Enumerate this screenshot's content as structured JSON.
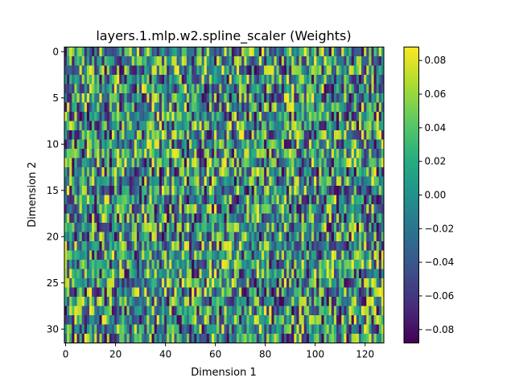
{
  "chart_data": {
    "type": "heatmap",
    "title": "layers.1.mlp.w2.spline_scaler (Weights)",
    "xlabel": "Dimension 1",
    "ylabel": "Dimension 2",
    "columns": 128,
    "rows": 32,
    "x_ticks": [
      0,
      20,
      40,
      60,
      80,
      100,
      120
    ],
    "y_ticks": [
      0,
      5,
      10,
      15,
      20,
      25,
      30
    ],
    "colormap": "viridis",
    "colorbar": {
      "min": -0.088,
      "max": 0.088,
      "ticks": [
        -0.08,
        -0.06,
        -0.04,
        -0.02,
        0.0,
        0.02,
        0.04,
        0.06,
        0.08
      ],
      "tick_labels": [
        "−0.08",
        "−0.06",
        "−0.04",
        "−0.02",
        "0.00",
        "0.02",
        "0.04",
        "0.06",
        "0.08"
      ]
    },
    "values_note": "",
    "grid": false
  }
}
